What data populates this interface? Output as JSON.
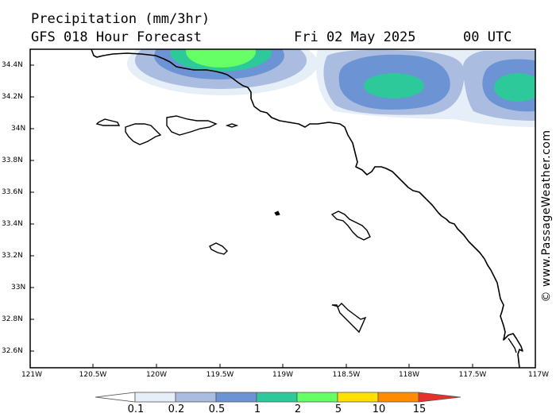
{
  "header": {
    "title": "Precipitation (mm/3hr)",
    "subtitle": "GFS 018 Hour Forecast",
    "date": "Fri 02 May 2025",
    "time": "00 UTC"
  },
  "credit": "© www.PassageWeather.com",
  "lat_ticks": [
    "34.4N",
    "34.2N",
    "34N",
    "33.8N",
    "33.6N",
    "33.4N",
    "33.2N",
    "33N",
    "32.8N",
    "32.6N"
  ],
  "lon_ticks": [
    "121W",
    "120.5W",
    "120W",
    "119.5W",
    "119W",
    "118.5W",
    "118W",
    "117.5W",
    "117W"
  ],
  "colorbar": {
    "labels": [
      "0.1",
      "0.2",
      "0.5",
      "1",
      "2",
      "5",
      "10",
      "15"
    ],
    "colors": [
      "#ffffff",
      "#e6eef8",
      "#aabcdf",
      "#6c93d3",
      "#2ec99a",
      "#66ff66",
      "#ffe000",
      "#ff8c00",
      "#e8302a"
    ]
  }
}
